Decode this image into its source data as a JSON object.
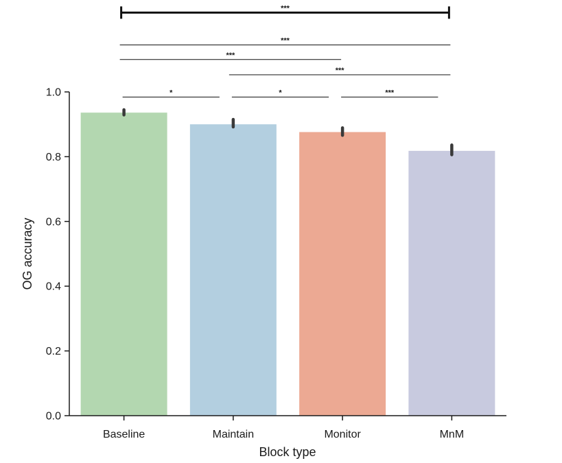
{
  "chart_data": {
    "type": "bar",
    "title": "",
    "xlabel": "Block type",
    "ylabel": "OG accuracy",
    "ylim": [
      0,
      1.0
    ],
    "yticks": [
      0.0,
      0.2,
      0.4,
      0.6,
      0.8,
      1.0
    ],
    "ytick_labels": [
      "0.0",
      "0.2",
      "0.4",
      "0.6",
      "0.8",
      "1.0"
    ],
    "grid": false,
    "legend": "none",
    "categories": [
      "Baseline",
      "Maintain",
      "Monitor",
      "MnM"
    ],
    "values": [
      0.936,
      0.9,
      0.876,
      0.818
    ],
    "error_low": [
      0.929,
      0.892,
      0.866,
      0.806
    ],
    "error_high": [
      0.945,
      0.915,
      0.889,
      0.836
    ],
    "colors": [
      "#b3d7b0",
      "#b3cfe0",
      "#eca993",
      "#c8cadf"
    ],
    "error_color": "#3a3a3a",
    "significance": [
      {
        "from": 0,
        "to": 3,
        "label": "***",
        "y": 1.245,
        "style": "bracket"
      },
      {
        "from": 0,
        "to": 3,
        "label": "***",
        "y": 1.145,
        "style": "line"
      },
      {
        "from": 0,
        "to": 2,
        "label": "***",
        "y": 1.1,
        "style": "line"
      },
      {
        "from": 1,
        "to": 3,
        "label": "***",
        "y": 1.053,
        "style": "line"
      },
      {
        "from": 0,
        "to": 1,
        "label": "*",
        "y": 0.984,
        "style": "line"
      },
      {
        "from": 1,
        "to": 2,
        "label": "*",
        "y": 0.984,
        "style": "line"
      },
      {
        "from": 2,
        "to": 3,
        "label": "***",
        "y": 0.984,
        "style": "line"
      }
    ]
  }
}
